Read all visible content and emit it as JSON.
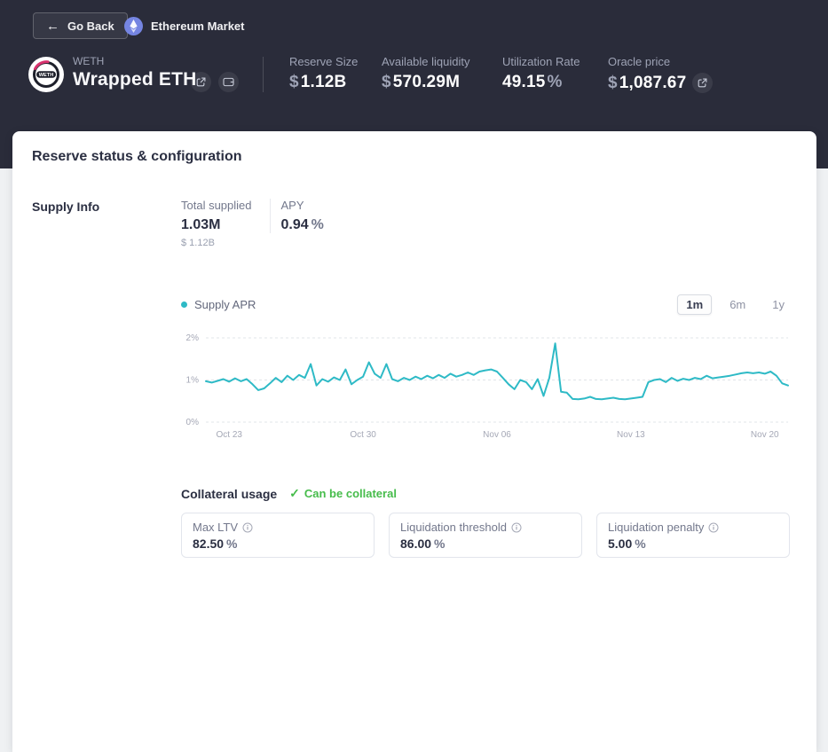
{
  "topbar": {
    "back_label": "Go Back",
    "market_label": "Ethereum Market",
    "token": {
      "symbol": "WETH",
      "name": "Wrapped ETH"
    },
    "stats": [
      {
        "label": "Reserve Size",
        "prefix": "$",
        "value": "1.12B",
        "suffix": ""
      },
      {
        "label": "Available liquidity",
        "prefix": "$",
        "value": "570.29M",
        "suffix": ""
      },
      {
        "label": "Utilization Rate",
        "prefix": "",
        "value": "49.15",
        "suffix": "%"
      },
      {
        "label": "Oracle price",
        "prefix": "$",
        "value": "1,087.67",
        "suffix": ""
      }
    ]
  },
  "card": {
    "title": "Reserve status & configuration",
    "section_label": "Supply Info",
    "supply": {
      "total_supplied_label": "Total supplied",
      "total_supplied": "1.03M",
      "total_supplied_usd": "$ 1.12B",
      "apy_label": "APY",
      "apy": "0.94",
      "apy_suffix": "%"
    },
    "legend_label": "Supply APR",
    "ranges": [
      "1m",
      "6m",
      "1y"
    ],
    "selected_range": "1m",
    "collateral": {
      "label": "Collateral usage",
      "status": "Can be collateral",
      "boxes": [
        {
          "label": "Max LTV",
          "value": "82.50",
          "suffix": "%"
        },
        {
          "label": "Liquidation threshold",
          "value": "86.00",
          "suffix": "%"
        },
        {
          "label": "Liquidation penalty",
          "value": "5.00",
          "suffix": "%"
        }
      ]
    }
  },
  "colors": {
    "accent_teal": "#2EBAC6",
    "status_green": "#46BC4B",
    "header_dark": "#2A2C3A"
  },
  "chart_data": {
    "type": "line",
    "title": "Supply APR",
    "unit": "%",
    "color": "#2EBAC6",
    "ylim": [
      0,
      2
    ],
    "grid": true,
    "legend_position": "top-left",
    "yticks": [
      {
        "v": 0,
        "label": "0%"
      },
      {
        "v": 1,
        "label": "1%"
      },
      {
        "v": 2,
        "label": "2%"
      }
    ],
    "xticks": [
      {
        "f": 0.04,
        "label": "Oct 23"
      },
      {
        "f": 0.27,
        "label": "Oct 30"
      },
      {
        "f": 0.5,
        "label": "Nov 06"
      },
      {
        "f": 0.73,
        "label": "Nov 13"
      },
      {
        "f": 0.96,
        "label": "Nov 20"
      }
    ],
    "values": [
      0.97,
      0.94,
      0.98,
      1.02,
      0.96,
      1.04,
      0.97,
      1.02,
      0.9,
      0.76,
      0.8,
      0.92,
      1.05,
      0.95,
      1.1,
      1.0,
      1.12,
      1.05,
      1.38,
      0.87,
      1.02,
      0.96,
      1.06,
      1.0,
      1.25,
      0.9,
      1.0,
      1.08,
      1.42,
      1.15,
      1.05,
      1.38,
      1.02,
      0.97,
      1.05,
      1.0,
      1.08,
      1.02,
      1.1,
      1.04,
      1.12,
      1.05,
      1.15,
      1.08,
      1.12,
      1.18,
      1.12,
      1.2,
      1.23,
      1.25,
      1.2,
      1.05,
      0.9,
      0.78,
      1.0,
      0.95,
      0.78,
      1.02,
      0.62,
      1.05,
      1.87,
      0.72,
      0.7,
      0.55,
      0.54,
      0.56,
      0.6,
      0.55,
      0.54,
      0.56,
      0.58,
      0.55,
      0.54,
      0.56,
      0.58,
      0.6,
      0.95,
      1.0,
      1.02,
      0.95,
      1.05,
      0.98,
      1.03,
      1.0,
      1.05,
      1.02,
      1.1,
      1.04,
      1.06,
      1.08,
      1.1,
      1.13,
      1.16,
      1.18,
      1.16,
      1.18,
      1.15,
      1.2,
      1.1,
      0.92,
      0.87
    ]
  }
}
